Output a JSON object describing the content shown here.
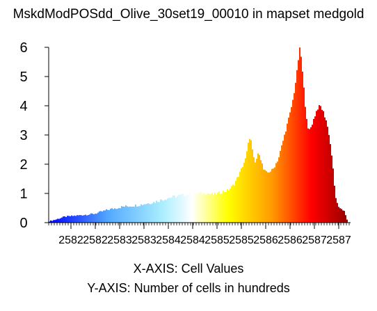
{
  "chart_data": {
    "type": "bar",
    "title": "MskdModPOSdd_Olive_30set19_00010 in mapset medgold",
    "xlabel": "X-AXIS: Cell Values",
    "ylabel": "Y-AXIS: Number of cells in hundreds",
    "ylim": [
      0,
      6
    ],
    "yticks": [
      "0",
      "1",
      "2",
      "3",
      "4",
      "5",
      "6"
    ],
    "xticks": [
      "2582",
      "2582",
      "2583",
      "2583",
      "2584",
      "2584",
      "2585",
      "2585",
      "2586",
      "2586",
      "2587",
      "2587"
    ],
    "grid": false,
    "legend": "none",
    "color_scale": [
      "#0000ff",
      "#55aaff",
      "#aaeeff",
      "#ffffff",
      "#ffff00",
      "#ff9900",
      "#ff0000",
      "#990000"
    ],
    "profile": [
      [
        0,
        0.05
      ],
      [
        0.02,
        0.1
      ],
      [
        0.05,
        0.2
      ],
      [
        0.1,
        0.25
      ],
      [
        0.15,
        0.3
      ],
      [
        0.2,
        0.45
      ],
      [
        0.25,
        0.55
      ],
      [
        0.3,
        0.6
      ],
      [
        0.35,
        0.7
      ],
      [
        0.4,
        0.85
      ],
      [
        0.45,
        0.95
      ],
      [
        0.5,
        1.0
      ],
      [
        0.53,
        1.02
      ],
      [
        0.55,
        0.95
      ],
      [
        0.58,
        1.05
      ],
      [
        0.6,
        1.1
      ],
      [
        0.62,
        1.3
      ],
      [
        0.64,
        1.7
      ],
      [
        0.66,
        2.2
      ],
      [
        0.67,
        2.8
      ],
      [
        0.675,
        3.0
      ],
      [
        0.68,
        2.6
      ],
      [
        0.69,
        2.0
      ],
      [
        0.7,
        2.3
      ],
      [
        0.705,
        2.4
      ],
      [
        0.71,
        2.2
      ],
      [
        0.72,
        1.8
      ],
      [
        0.73,
        1.7
      ],
      [
        0.75,
        1.8
      ],
      [
        0.77,
        2.2
      ],
      [
        0.79,
        3.0
      ],
      [
        0.81,
        3.8
      ],
      [
        0.82,
        4.3
      ],
      [
        0.83,
        5.0
      ],
      [
        0.84,
        5.9
      ],
      [
        0.843,
        6.0
      ],
      [
        0.85,
        5.2
      ],
      [
        0.86,
        4.0
      ],
      [
        0.87,
        3.1
      ],
      [
        0.88,
        3.3
      ],
      [
        0.89,
        3.6
      ],
      [
        0.9,
        3.9
      ],
      [
        0.91,
        4.0
      ],
      [
        0.92,
        3.8
      ],
      [
        0.93,
        3.5
      ],
      [
        0.94,
        3.0
      ],
      [
        0.95,
        2.2
      ],
      [
        0.96,
        1.0
      ],
      [
        0.97,
        0.5
      ],
      [
        0.98,
        0.5
      ],
      [
        0.99,
        0.4
      ],
      [
        1.0,
        0.1
      ]
    ]
  }
}
